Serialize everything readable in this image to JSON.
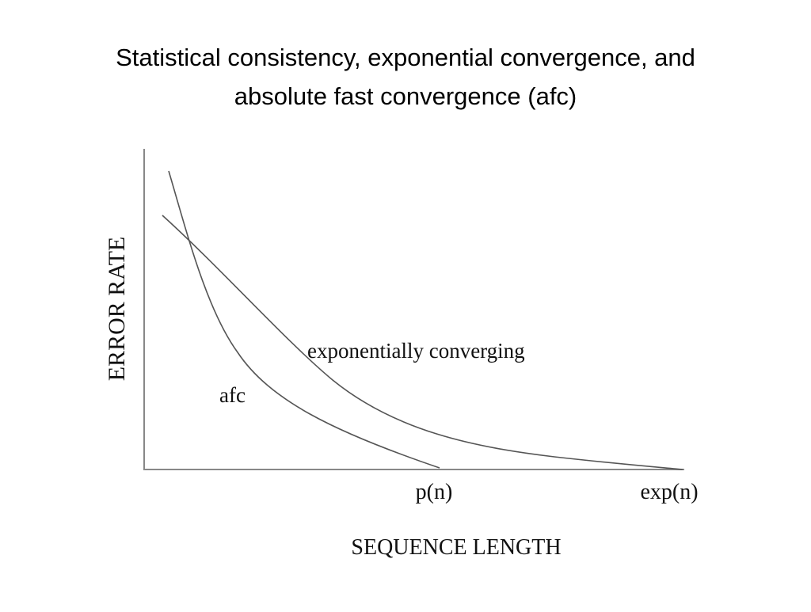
{
  "slide": {
    "title_lines": [
      "Statistical consistency, exponential convergence, and",
      "absolute fast convergence (afc)"
    ],
    "figure": {
      "y_axis_label": "ERROR RATE",
      "x_axis_label": "SEQUENCE LENGTH",
      "x_markers": [
        "p(n)",
        "exp(n)"
      ],
      "curve_labels": [
        "exponentially converging",
        "afc"
      ]
    }
  }
}
